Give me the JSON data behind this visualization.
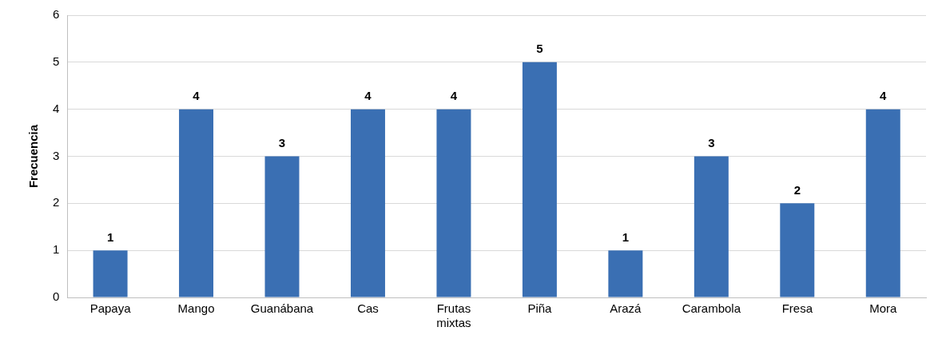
{
  "chart_data": {
    "type": "bar",
    "ylabel": "Frecuencia",
    "categories": [
      "Papaya",
      "Mango",
      "Guanábana",
      "Cas",
      "Frutas mixtas",
      "Piña",
      "Arazá",
      "Carambola",
      "Fresa",
      "Mora"
    ],
    "values": [
      1,
      4,
      3,
      4,
      4,
      5,
      1,
      3,
      2,
      4
    ],
    "color": "#3a6fb3",
    "ylim": [
      0,
      6
    ],
    "yticks": [
      0,
      1,
      2,
      3,
      4,
      5,
      6
    ],
    "grid": "y",
    "data_labels": true
  }
}
